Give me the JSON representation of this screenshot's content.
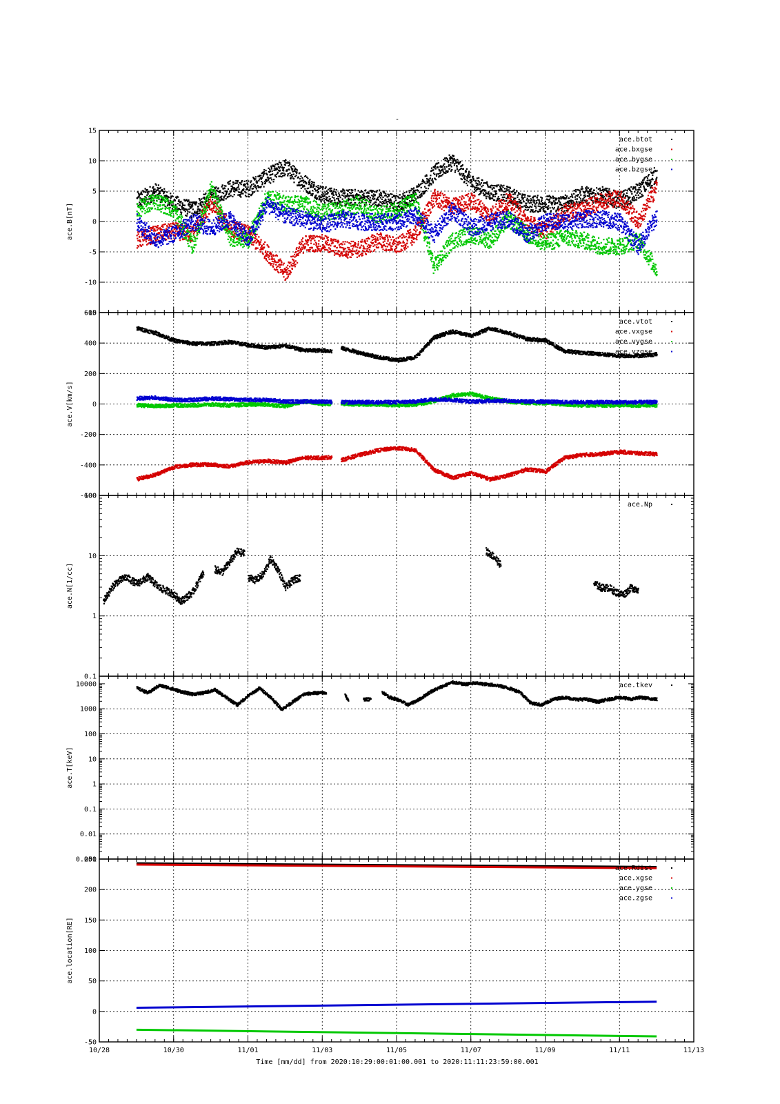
{
  "colors": {
    "black": "#000000",
    "red": "#d40000",
    "green": "#00c800",
    "blue": "#0000d0"
  },
  "figure_title": "-",
  "time_axis": {
    "start": "2020-10-28",
    "end": "2020-11-13",
    "major_tick_labels": [
      "10/28",
      "10/30",
      "11/01",
      "11/03",
      "11/05",
      "11/07",
      "11/09",
      "11/11",
      "11/13"
    ],
    "xlabel": "Time [mm/dd]  from 2020:10:29:00:01:00.001  to  2020:11:11:23:59:00.001"
  },
  "chart_data": [
    {
      "type": "scatter",
      "panel": "B",
      "ylabel": "ace.B[nT]",
      "ylim": [
        -15,
        15
      ],
      "scale": "linear",
      "yticks": [
        -15,
        -10,
        -5,
        0,
        5,
        10,
        15
      ],
      "ytick_labels": [
        "-15",
        "-10",
        "-5",
        "0",
        "5",
        "10",
        "15"
      ],
      "grid": true,
      "legend_position": "top-right",
      "series": [
        {
          "name": "ace.btot",
          "color": "#000000",
          "x": [
            "10/29",
            "10/29.5",
            "10/30",
            "10/30.5",
            "10/31",
            "10/31.5",
            "11/01",
            "11/01.5",
            "11/02",
            "11/02.5",
            "11/03",
            "11/03.5",
            "11/04",
            "11/04.5",
            "11/05",
            "11/05.5",
            "11/06",
            "11/06.5",
            "11/07",
            "11/07.5",
            "11/08",
            "11/08.5",
            "11/09",
            "11/09.5",
            "11/10",
            "11/10.5",
            "11/11",
            "11/11.5",
            "11/12"
          ],
          "y": [
            3.5,
            5.0,
            3.0,
            2.0,
            4.0,
            5.5,
            5.5,
            7.5,
            9.0,
            6.5,
            4.5,
            4.0,
            4.0,
            4.0,
            3.0,
            4.5,
            8.0,
            10.0,
            6.5,
            5.0,
            4.5,
            3.0,
            3.0,
            3.0,
            4.5,
            4.5,
            3.5,
            5.0,
            8.0
          ]
        },
        {
          "name": "ace.bxgse",
          "color": "#d40000",
          "x": [
            "10/29",
            "10/29.5",
            "10/30",
            "10/30.5",
            "10/31",
            "10/31.5",
            "11/01",
            "11/01.5",
            "11/02",
            "11/02.5",
            "11/03",
            "11/03.5",
            "11/04",
            "11/04.5",
            "11/05",
            "11/05.5",
            "11/06",
            "11/06.5",
            "11/07",
            "11/07.5",
            "11/08",
            "11/08.5",
            "11/09",
            "11/09.5",
            "11/10",
            "11/10.5",
            "11/11",
            "11/11.5",
            "11/12"
          ],
          "y": [
            -3.0,
            -2.0,
            -1.5,
            -2.0,
            3.0,
            -1.0,
            -2.0,
            -5.0,
            -8.5,
            -3.5,
            -3.5,
            -4.5,
            -4.5,
            -3.0,
            -4.0,
            -2.0,
            4.0,
            2.5,
            3.5,
            1.0,
            3.5,
            0.0,
            -1.5,
            1.5,
            2.0,
            3.5,
            4.0,
            0.0,
            6.0
          ]
        },
        {
          "name": "ace.bygse",
          "color": "#00c800",
          "x": [
            "10/29",
            "10/29.5",
            "10/30",
            "10/30.5",
            "10/31",
            "10/31.5",
            "11/01",
            "11/01.5",
            "11/02",
            "11/02.5",
            "11/03",
            "11/03.5",
            "11/04",
            "11/04.5",
            "11/05",
            "11/05.5",
            "11/06",
            "11/06.5",
            "11/07",
            "11/07.5",
            "11/08",
            "11/08.5",
            "11/09",
            "11/09.5",
            "11/10",
            "11/10.5",
            "11/11",
            "11/11.5",
            "11/12"
          ],
          "y": [
            2.0,
            3.5,
            2.0,
            -4.0,
            5.5,
            -2.5,
            -3.0,
            4.0,
            3.0,
            3.0,
            1.5,
            2.0,
            3.0,
            1.0,
            2.0,
            3.5,
            -7.5,
            -3.0,
            -2.0,
            -3.0,
            0.5,
            -2.0,
            -3.5,
            -2.5,
            -3.0,
            -4.0,
            -4.0,
            -3.0,
            -8.0
          ]
        },
        {
          "name": "ace.bzgse",
          "color": "#0000d0",
          "x": [
            "10/29",
            "10/29.5",
            "10/30",
            "10/30.5",
            "10/31",
            "10/31.5",
            "11/01",
            "11/01.5",
            "11/02",
            "11/02.5",
            "11/03",
            "11/03.5",
            "11/04",
            "11/04.5",
            "11/05",
            "11/05.5",
            "11/06",
            "11/06.5",
            "11/07",
            "11/07.5",
            "11/08",
            "11/08.5",
            "11/09",
            "11/09.5",
            "11/10",
            "11/10.5",
            "11/11",
            "11/11.5",
            "11/12"
          ],
          "y": [
            0.0,
            -3.0,
            -2.0,
            0.0,
            -1.0,
            0.5,
            -3.0,
            3.0,
            1.0,
            0.5,
            -0.5,
            0.5,
            0.0,
            0.0,
            0.0,
            1.0,
            -2.0,
            2.0,
            -1.0,
            0.0,
            0.5,
            -2.0,
            0.0,
            0.0,
            0.5,
            0.5,
            0.0,
            -4.0,
            1.0
          ]
        }
      ]
    },
    {
      "type": "scatter",
      "panel": "V",
      "ylabel": "ace.V[km/s]",
      "ylim": [
        -600,
        600
      ],
      "scale": "linear",
      "yticks": [
        -600,
        -400,
        -200,
        0,
        200,
        400,
        600
      ],
      "ytick_labels": [
        "-600",
        "-400",
        "-200",
        "0",
        "200",
        "400",
        "600"
      ],
      "grid": true,
      "legend_position": "top-right",
      "gap": [
        "11/03.25",
        "11/03.5"
      ],
      "series": [
        {
          "name": "ace.vtot",
          "color": "#000000",
          "x": [
            "10/29",
            "10/29.5",
            "10/30",
            "10/30.5",
            "10/31",
            "10/31.5",
            "11/01",
            "11/01.5",
            "11/02",
            "11/02.5",
            "11/03",
            "11/03.25",
            "11/03.5",
            "11/04",
            "11/04.5",
            "11/05",
            "11/05.5",
            "11/06",
            "11/06.5",
            "11/07",
            "11/07.5",
            "11/08",
            "11/08.5",
            "11/09",
            "11/09.5",
            "11/10",
            "11/10.5",
            "11/11",
            "11/11.5",
            "11/12"
          ],
          "y": [
            500,
            470,
            420,
            400,
            400,
            410,
            390,
            375,
            385,
            355,
            355,
            350,
            370,
            340,
            310,
            290,
            310,
            440,
            480,
            450,
            500,
            470,
            430,
            420,
            350,
            340,
            330,
            320,
            320,
            330
          ]
        },
        {
          "name": "ace.vxgse",
          "color": "#d40000",
          "x": [
            "10/29",
            "10/29.5",
            "10/30",
            "10/30.5",
            "10/31",
            "10/31.5",
            "11/01",
            "11/01.5",
            "11/02",
            "11/02.5",
            "11/03",
            "11/03.25",
            "11/03.5",
            "11/04",
            "11/04.5",
            "11/05",
            "11/05.5",
            "11/06",
            "11/06.5",
            "11/07",
            "11/07.5",
            "11/08",
            "11/08.5",
            "11/09",
            "11/09.5",
            "11/10",
            "11/10.5",
            "11/11",
            "11/11.5",
            "11/12"
          ],
          "y": [
            -490,
            -460,
            -410,
            -395,
            -395,
            -405,
            -380,
            -370,
            -380,
            -350,
            -350,
            -345,
            -365,
            -330,
            -300,
            -285,
            -300,
            -430,
            -480,
            -450,
            -490,
            -465,
            -425,
            -440,
            -350,
            -330,
            -325,
            -310,
            -320,
            -325
          ]
        },
        {
          "name": "ace.vygse",
          "color": "#00c800",
          "x": [
            "10/29",
            "10/29.5",
            "10/30",
            "10/30.5",
            "10/31",
            "10/31.5",
            "11/01",
            "11/01.5",
            "11/02",
            "11/02.5",
            "11/03",
            "11/03.25",
            "11/03.5",
            "11/04",
            "11/04.5",
            "11/05",
            "11/05.5",
            "11/06",
            "11/06.5",
            "11/07",
            "11/07.5",
            "11/08",
            "11/08.5",
            "11/09",
            "11/09.5",
            "11/10",
            "11/10.5",
            "11/11",
            "11/11.5",
            "11/12"
          ],
          "y": [
            -5,
            -10,
            -5,
            -5,
            0,
            -5,
            0,
            0,
            -10,
            20,
            5,
            5,
            5,
            0,
            0,
            -5,
            0,
            20,
            60,
            70,
            40,
            20,
            10,
            10,
            0,
            -5,
            -5,
            -5,
            -5,
            -5
          ]
        },
        {
          "name": "ace.vzgse",
          "color": "#0000d0",
          "x": [
            "10/29",
            "10/29.5",
            "10/30",
            "10/30.5",
            "10/31",
            "10/31.5",
            "11/01",
            "11/01.5",
            "11/02",
            "11/02.5",
            "11/03",
            "11/03.25",
            "11/03.5",
            "11/04",
            "11/04.5",
            "11/05",
            "11/05.5",
            "11/06",
            "11/06.5",
            "11/07",
            "11/07.5",
            "11/08",
            "11/08.5",
            "11/09",
            "11/09.5",
            "11/10",
            "11/10.5",
            "11/11",
            "11/11.5",
            "11/12"
          ],
          "y": [
            40,
            45,
            30,
            30,
            40,
            35,
            30,
            30,
            20,
            20,
            20,
            15,
            15,
            15,
            15,
            15,
            20,
            35,
            30,
            20,
            25,
            25,
            20,
            20,
            15,
            15,
            15,
            15,
            15,
            15
          ]
        }
      ]
    },
    {
      "type": "scatter",
      "panel": "N",
      "ylabel": "ace.N[1/cc]",
      "ylim": [
        0.1,
        100
      ],
      "scale": "log",
      "yticks": [
        0.1,
        1,
        10,
        100
      ],
      "ytick_labels": [
        "0.1",
        "1",
        "10",
        "100"
      ],
      "grid": true,
      "legend_position": "top-right",
      "series": [
        {
          "name": "ace.Np",
          "color": "#000000",
          "segments": [
            {
              "x": [
                "10/28.1",
                "10/28.4",
                "10/28.7",
                "10/29",
                "10/29.3",
                "10/29.6",
                "10/29.9",
                "10/30.2",
                "10/30.5",
                "10/30.8"
              ],
              "y": [
                1.8,
                3.5,
                4.5,
                3.5,
                4.5,
                3.0,
                2.5,
                1.8,
                2.5,
                5.5
              ]
            },
            {
              "x": [
                "10/31.1",
                "10/31.3",
                "10/31.5",
                "10/31.7",
                "10/31.9"
              ],
              "y": [
                6.0,
                5.5,
                8.0,
                12.0,
                11.0
              ]
            },
            {
              "x": [
                "11/01.0",
                "11/01.2",
                "11/01.4",
                "11/01.6",
                "11/01.8",
                "11/02.0",
                "11/02.2",
                "11/02.4"
              ],
              "y": [
                4.5,
                4.0,
                5.0,
                9.0,
                6.0,
                3.0,
                4.0,
                4.5
              ]
            },
            {
              "x": [
                "11/07.4",
                "11/07.6",
                "11/07.8"
              ],
              "y": [
                12.0,
                10.0,
                7.0
              ]
            },
            {
              "x": [
                "11/10.3",
                "11/10.5",
                "11/10.7",
                "11/10.9",
                "11/11.1",
                "11/11.3",
                "11/11.5"
              ],
              "y": [
                3.5,
                3.0,
                3.0,
                2.5,
                2.3,
                3.0,
                2.8
              ]
            }
          ]
        }
      ]
    },
    {
      "type": "scatter",
      "panel": "T",
      "ylabel": "ace.T[keV]",
      "ylim": [
        0.001,
        20000
      ],
      "scale": "log",
      "yticks": [
        0.001,
        0.01,
        0.1,
        1,
        10,
        100,
        1000,
        10000
      ],
      "ytick_labels": [
        "0.001",
        "0.01",
        "0.1",
        "1",
        "10",
        "100",
        "1000",
        "10000"
      ],
      "grid": true,
      "legend_position": "top-right",
      "series": [
        {
          "name": "ace.tkev",
          "color": "#000000",
          "segments": [
            {
              "x": [
                "10/29",
                "10/29.3",
                "10/29.6",
                "10/29.9",
                "10/30.2",
                "10/30.5",
                "10/30.8",
                "10/31.1",
                "10/31.4",
                "10/31.7",
                "11/01",
                "11/01.3",
                "11/01.6",
                "11/01.9",
                "11/02.2",
                "11/02.5",
                "11/02.8",
                "11/03.1"
              ],
              "y": [
                7000,
                4500,
                9000,
                7000,
                5000,
                4000,
                4500,
                6000,
                3000,
                1500,
                3500,
                7000,
                3000,
                1000,
                2000,
                4000,
                4500,
                4500
              ]
            },
            {
              "x": [
                "11/03.6",
                "11/03.7"
              ],
              "y": [
                4000,
                2000
              ]
            },
            {
              "x": [
                "11/04.1",
                "11/04.3"
              ],
              "y": [
                2500,
                2500
              ]
            },
            {
              "x": [
                "11/04.6",
                "11/04.8",
                "11/05.0",
                "11/05.3",
                "11/05.6",
                "11/05.9",
                "11/06.2",
                "11/06.5",
                "11/06.8",
                "11/07.1",
                "11/07.4",
                "11/07.7",
                "11/08.0",
                "11/08.3",
                "11/08.6",
                "11/08.9",
                "11/09.2",
                "11/09.5",
                "11/09.8",
                "11/10.1",
                "11/10.4",
                "11/10.7",
                "11/11.0",
                "11/11.3",
                "11/11.5",
                "11/12.0"
              ],
              "y": [
                5000,
                3000,
                2500,
                1500,
                2500,
                5000,
                8000,
                12000,
                10000,
                11000,
                10000,
                9000,
                7000,
                5000,
                1800,
                1500,
                2500,
                3000,
                2500,
                2500,
                2000,
                2500,
                3000,
                2500,
                3000,
                2500
              ]
            }
          ]
        }
      ]
    },
    {
      "type": "line",
      "panel": "location",
      "ylabel": "ace.location[RE]",
      "ylim": [
        -50,
        250
      ],
      "scale": "linear",
      "yticks": [
        -50,
        0,
        50,
        100,
        150,
        200,
        250
      ],
      "ytick_labels": [
        "-50",
        "0",
        "50",
        "100",
        "150",
        "200",
        "250"
      ],
      "grid": true,
      "legend_position": "top-right",
      "series": [
        {
          "name": "ace.Rdist",
          "color": "#000000",
          "x": [
            "10/29",
            "11/12"
          ],
          "y": [
            243,
            237
          ]
        },
        {
          "name": "ace.xgse",
          "color": "#d40000",
          "x": [
            "10/29",
            "11/12"
          ],
          "y": [
            241,
            235
          ]
        },
        {
          "name": "ace.ygse",
          "color": "#00c800",
          "x": [
            "10/29",
            "11/12"
          ],
          "y": [
            -30,
            -41
          ]
        },
        {
          "name": "ace.zgse",
          "color": "#0000d0",
          "x": [
            "10/29",
            "11/12"
          ],
          "y": [
            6,
            16
          ]
        }
      ]
    }
  ]
}
